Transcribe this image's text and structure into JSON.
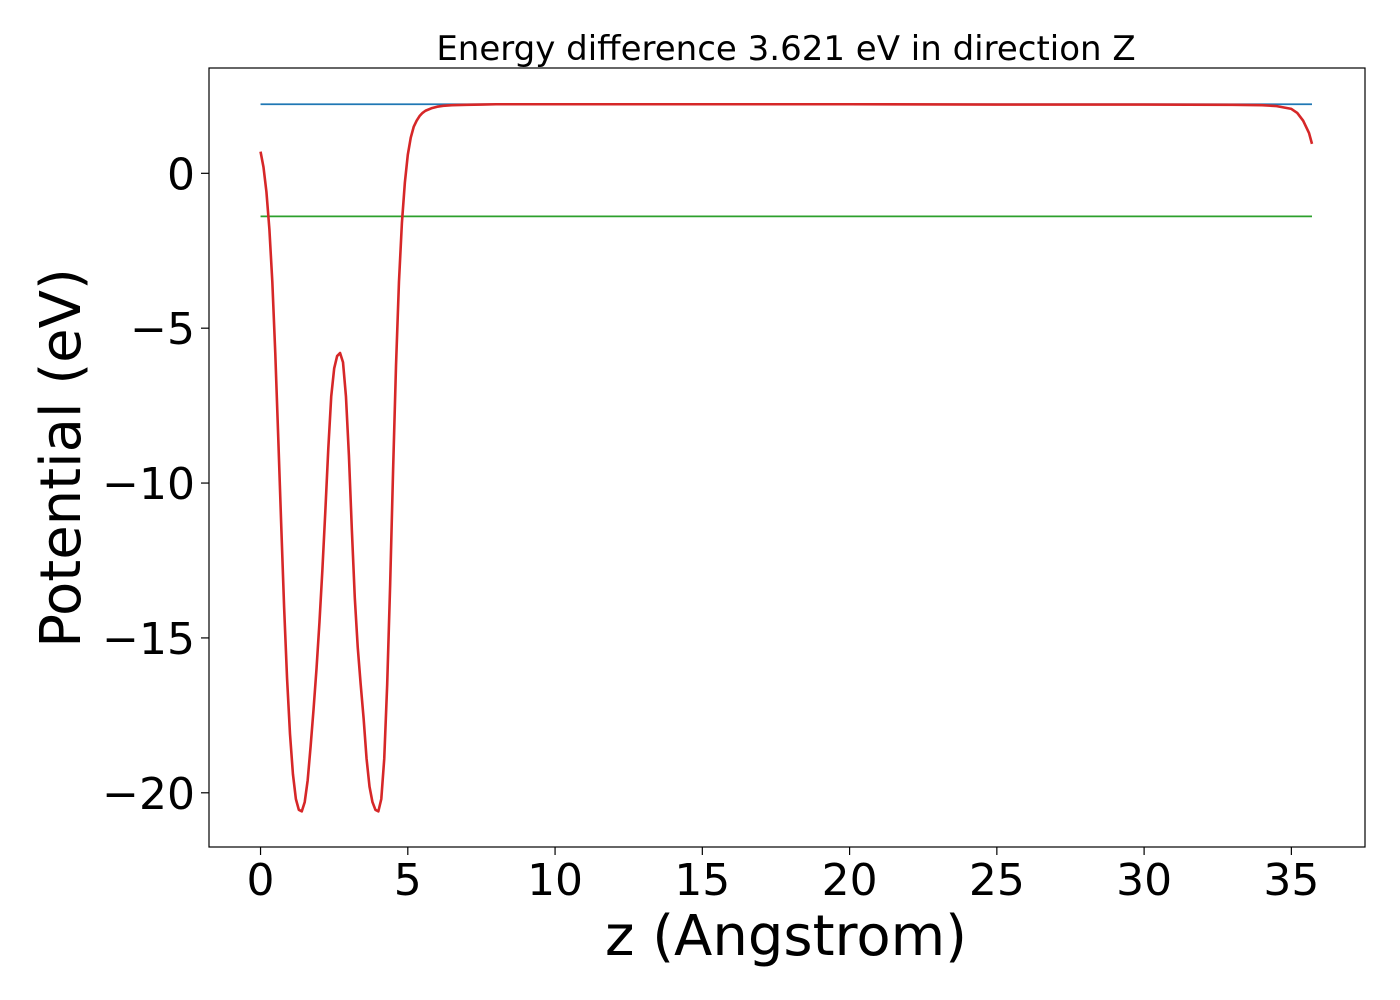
{
  "chart_data": {
    "type": "line",
    "title": "Energy difference 3.621 eV in direction Z",
    "xlabel": "z (Angstrom)",
    "ylabel": "Potential (eV)",
    "xlim": [
      -1.75,
      37.5
    ],
    "ylim": [
      -21.75,
      3.4
    ],
    "xticks": [
      0,
      5,
      10,
      15,
      20,
      25,
      30,
      35
    ],
    "yticks": [
      0,
      -5,
      -10,
      -15,
      -20
    ],
    "xtick_labels": [
      "0",
      "5",
      "10",
      "15",
      "20",
      "25",
      "30",
      "35"
    ],
    "ytick_labels": [
      "0",
      "−5",
      "−10",
      "−15",
      "−20"
    ],
    "grid": false,
    "legend": "none",
    "series": [
      {
        "color": "#d62728",
        "x": [
          0,
          0.1,
          0.2,
          0.3,
          0.4,
          0.5,
          0.6,
          0.7,
          0.8,
          0.9,
          1.0,
          1.1,
          1.2,
          1.3,
          1.4,
          1.5,
          1.6,
          1.7,
          1.8,
          1.9,
          2.0,
          2.1,
          2.2,
          2.3,
          2.4,
          2.5,
          2.6,
          2.7,
          2.8,
          2.9,
          3.0,
          3.1,
          3.2,
          3.3,
          3.4,
          3.5,
          3.6,
          3.7,
          3.8,
          3.9,
          4.0,
          4.1,
          4.2,
          4.3,
          4.4,
          4.5,
          4.6,
          4.7,
          4.8,
          4.9,
          5.0,
          5.1,
          5.2,
          5.3,
          5.4,
          5.5,
          5.6,
          5.8,
          6.0,
          6.2,
          6.5,
          7.0,
          7.5,
          8.0,
          9.0,
          10,
          15,
          20,
          25,
          30,
          33,
          34,
          34.5,
          35,
          35.2,
          35.4,
          35.6,
          35.7
        ],
        "y": [
          0.7,
          0.2,
          -0.6,
          -1.8,
          -3.5,
          -5.8,
          -8.5,
          -11.3,
          -14.0,
          -16.3,
          -18.1,
          -19.4,
          -20.2,
          -20.55,
          -20.6,
          -20.3,
          -19.6,
          -18.5,
          -17.3,
          -16.0,
          -14.5,
          -12.8,
          -10.9,
          -8.9,
          -7.2,
          -6.3,
          -5.9,
          -5.8,
          -6.1,
          -7.2,
          -9.1,
          -11.5,
          -13.7,
          -15.3,
          -16.5,
          -17.6,
          -18.9,
          -19.8,
          -20.3,
          -20.55,
          -20.6,
          -20.2,
          -18.9,
          -16.5,
          -13.3,
          -9.6,
          -6.2,
          -3.5,
          -1.6,
          -0.3,
          0.6,
          1.15,
          1.5,
          1.7,
          1.85,
          1.95,
          2.02,
          2.1,
          2.15,
          2.18,
          2.2,
          2.21,
          2.22,
          2.23,
          2.23,
          2.23,
          2.23,
          2.23,
          2.22,
          2.22,
          2.21,
          2.2,
          2.17,
          2.08,
          1.95,
          1.7,
          1.3,
          0.95
        ]
      },
      {
        "color": "#1f77b4",
        "x": [
          0,
          35.7
        ],
        "y": [
          2.23,
          2.23
        ]
      },
      {
        "color": "#2ca02c",
        "x": [
          0,
          35.7
        ],
        "y": [
          -1.39,
          -1.39
        ]
      }
    ]
  }
}
